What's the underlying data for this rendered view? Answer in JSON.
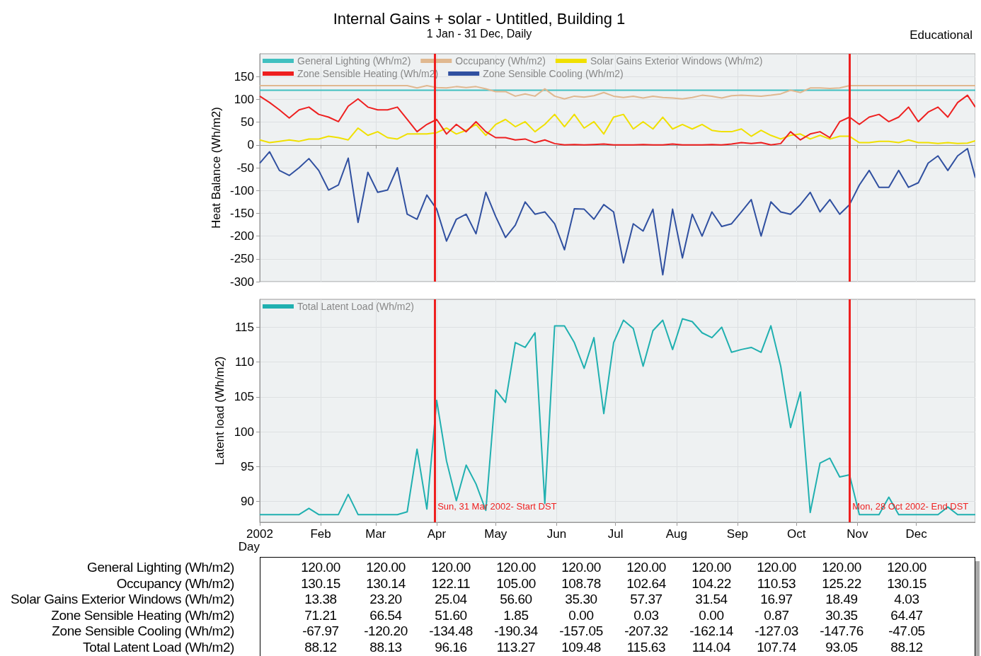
{
  "chart_data": [
    {
      "type": "line",
      "title": "Internal Gains + solar - Untitled, Building 1",
      "subtitle": "1 Jan - 31 Dec, Daily",
      "ylabel": "Heat Balance (Wh/m2)",
      "annotations": [
        "Educational"
      ],
      "x": [
        "2002-01-01",
        "2002-01-06",
        "2002-01-11",
        "2002-01-16",
        "2002-01-21",
        "2002-01-26",
        "2002-01-31",
        "2002-02-05",
        "2002-02-10",
        "2002-02-15",
        "2002-02-20",
        "2002-02-25",
        "2002-03-02",
        "2002-03-07",
        "2002-03-12",
        "2002-03-17",
        "2002-03-22",
        "2002-03-27",
        "2002-04-01",
        "2002-04-06",
        "2002-04-11",
        "2002-04-16",
        "2002-04-21",
        "2002-04-26",
        "2002-05-01",
        "2002-05-06",
        "2002-05-11",
        "2002-05-16",
        "2002-05-21",
        "2002-05-26",
        "2002-05-31",
        "2002-06-05",
        "2002-06-10",
        "2002-06-15",
        "2002-06-20",
        "2002-06-25",
        "2002-06-30",
        "2002-07-05",
        "2002-07-10",
        "2002-07-15",
        "2002-07-20",
        "2002-07-25",
        "2002-07-30",
        "2002-08-04",
        "2002-08-09",
        "2002-08-14",
        "2002-08-19",
        "2002-08-24",
        "2002-08-29",
        "2002-09-03",
        "2002-09-08",
        "2002-09-13",
        "2002-09-18",
        "2002-09-23",
        "2002-09-28",
        "2002-10-03",
        "2002-10-08",
        "2002-10-13",
        "2002-10-18",
        "2002-10-23",
        "2002-10-28",
        "2002-11-02",
        "2002-11-07",
        "2002-11-12",
        "2002-11-17",
        "2002-11-22",
        "2002-11-27",
        "2002-12-02",
        "2002-12-07",
        "2002-12-12",
        "2002-12-17",
        "2002-12-22",
        "2002-12-27",
        "2002-12-31"
      ],
      "series": [
        {
          "name": "General Lighting (Wh/m2)",
          "color": "#40c0c0",
          "x": [
            "2002-01-01",
            "2002-12-31"
          ],
          "values": [
            120,
            120
          ]
        },
        {
          "name": "Occupancy (Wh/m2)",
          "color": "#e0b890",
          "values": [
            130,
            130,
            130,
            130,
            130,
            130,
            130,
            130,
            130,
            130,
            130,
            130,
            130,
            130,
            130,
            130,
            125,
            130,
            126,
            125,
            128,
            126,
            128,
            123,
            117,
            117,
            107,
            112,
            107,
            123,
            107,
            101,
            107,
            105,
            108,
            115,
            107,
            104,
            107,
            103,
            107,
            104,
            103,
            101,
            104,
            109,
            107,
            103,
            108,
            109,
            108,
            107,
            109,
            112,
            120,
            115,
            125,
            125,
            124,
            125,
            130,
            130,
            130,
            130,
            130,
            130,
            130,
            130,
            130,
            130,
            130,
            130,
            130,
            130
          ]
        },
        {
          "name": "Solar Gains Exterior Windows (Wh/m2)",
          "color": "#f0e000",
          "values": [
            11,
            5,
            8,
            11,
            8,
            13,
            13,
            19,
            16,
            11,
            37,
            21,
            29,
            16,
            13,
            24,
            24,
            24,
            27,
            37,
            24,
            32,
            45,
            21,
            45,
            56,
            40,
            51,
            29,
            45,
            67,
            40,
            67,
            37,
            51,
            24,
            61,
            67,
            35,
            51,
            35,
            61,
            35,
            45,
            35,
            45,
            32,
            29,
            29,
            35,
            19,
            32,
            21,
            13,
            21,
            24,
            13,
            21,
            13,
            19,
            19,
            5,
            5,
            8,
            8,
            5,
            11,
            5,
            5,
            3,
            5,
            3,
            4,
            9
          ]
        },
        {
          "name": "Zone Sensible Heating (Wh/m2)",
          "color": "#ee2020",
          "values": [
            107,
            93,
            77,
            59,
            77,
            83,
            67,
            61,
            51,
            85,
            101,
            83,
            77,
            77,
            83,
            56,
            29,
            45,
            56,
            24,
            45,
            29,
            51,
            29,
            16,
            16,
            11,
            13,
            5,
            11,
            3,
            0,
            1,
            0,
            1,
            2,
            0,
            0,
            0,
            1,
            0,
            0,
            2,
            0,
            0,
            0,
            1,
            0,
            2,
            5,
            3,
            5,
            0,
            3,
            29,
            11,
            24,
            29,
            16,
            51,
            61,
            45,
            61,
            67,
            51,
            61,
            83,
            51,
            72,
            83,
            61,
            93,
            109,
            83
          ]
        },
        {
          "name": "Zone Sensible Cooling (Wh/m2)",
          "color": "#3050a0",
          "values": [
            -40,
            -15,
            -56,
            -67,
            -50,
            -30,
            -56,
            -99,
            -88,
            -29,
            -170,
            -60,
            -104,
            -99,
            -50,
            -152,
            -163,
            -110,
            -141,
            -211,
            -163,
            -152,
            -195,
            -104,
            -157,
            -203,
            -176,
            -125,
            -152,
            -147,
            -173,
            -230,
            -140,
            -141,
            -163,
            -131,
            -147,
            -259,
            -173,
            -189,
            -141,
            -285,
            -141,
            -248,
            -152,
            -200,
            -147,
            -179,
            -173,
            -147,
            -120,
            -200,
            -125,
            -147,
            -152,
            -131,
            -104,
            -147,
            -120,
            -152,
            -131,
            -88,
            -56,
            -93,
            -93,
            -56,
            -93,
            -83,
            -40,
            -24,
            -56,
            -24,
            -8,
            -72
          ]
        }
      ],
      "xlim": [
        "2002-01-01",
        "2002-12-31"
      ],
      "xticks": [
        {
          "value": "2002-01-01",
          "label": null
        },
        {
          "value": "2002-02-01",
          "label": null
        },
        {
          "value": "2002-03-01",
          "label": null
        },
        {
          "value": "2002-04-01",
          "label": null
        },
        {
          "value": "2002-05-01",
          "label": null
        },
        {
          "value": "2002-06-01",
          "label": null
        },
        {
          "value": "2002-07-01",
          "label": null
        },
        {
          "value": "2002-08-01",
          "label": null
        },
        {
          "value": "2002-09-01",
          "label": null
        },
        {
          "value": "2002-10-01",
          "label": null
        },
        {
          "value": "2002-11-01",
          "label": null
        },
        {
          "value": "2002-12-01",
          "label": null
        }
      ],
      "ylim": [
        -300,
        200
      ],
      "yticks": [
        -300,
        -250,
        -200,
        -150,
        -100,
        -50,
        0,
        50,
        100,
        150
      ],
      "tick_labels": "y",
      "grid": true,
      "legend": "top left",
      "marker": "none",
      "line_style": "solid",
      "ref_lines": [
        {
          "axis": "x",
          "value": "2002-03-31",
          "color": "#ee2020"
        },
        {
          "axis": "x",
          "value": "2002-10-28",
          "color": "#ee2020"
        }
      ]
    },
    {
      "type": "line",
      "xlabel": "Day",
      "ylabel": "Latent load (Wh/m2)",
      "x": [
        "2002-01-01",
        "2002-01-06",
        "2002-01-11",
        "2002-01-16",
        "2002-01-21",
        "2002-01-26",
        "2002-01-31",
        "2002-02-05",
        "2002-02-10",
        "2002-02-15",
        "2002-02-20",
        "2002-02-25",
        "2002-03-02",
        "2002-03-07",
        "2002-03-12",
        "2002-03-17",
        "2002-03-22",
        "2002-03-27",
        "2002-04-01",
        "2002-04-06",
        "2002-04-11",
        "2002-04-16",
        "2002-04-21",
        "2002-04-26",
        "2002-05-01",
        "2002-05-06",
        "2002-05-11",
        "2002-05-16",
        "2002-05-21",
        "2002-05-26",
        "2002-05-31",
        "2002-06-05",
        "2002-06-10",
        "2002-06-15",
        "2002-06-20",
        "2002-06-25",
        "2002-06-30",
        "2002-07-05",
        "2002-07-10",
        "2002-07-15",
        "2002-07-20",
        "2002-07-25",
        "2002-07-30",
        "2002-08-04",
        "2002-08-09",
        "2002-08-14",
        "2002-08-19",
        "2002-08-24",
        "2002-08-29",
        "2002-09-03",
        "2002-09-08",
        "2002-09-13",
        "2002-09-18",
        "2002-09-23",
        "2002-09-28",
        "2002-10-03",
        "2002-10-08",
        "2002-10-13",
        "2002-10-18",
        "2002-10-23",
        "2002-10-28",
        "2002-11-02",
        "2002-11-07",
        "2002-11-12",
        "2002-11-17",
        "2002-11-22",
        "2002-11-27",
        "2002-12-02",
        "2002-12-07",
        "2002-12-12",
        "2002-12-17",
        "2002-12-22",
        "2002-12-27",
        "2002-12-31"
      ],
      "series": [
        {
          "name": "Total Latent Load (Wh/m2)",
          "color": "#20b0b0",
          "values": [
            88.1,
            88.1,
            88.1,
            88.1,
            88.1,
            89,
            88.1,
            88.1,
            88.1,
            91,
            88.1,
            88.1,
            88.1,
            88.1,
            88.1,
            88.5,
            97.5,
            88.9,
            104.5,
            95.8,
            90.1,
            95.2,
            92.5,
            88.7,
            106,
            104.2,
            112.8,
            112.1,
            114.2,
            89.7,
            115.2,
            115.2,
            112.8,
            109.1,
            113.5,
            102.6,
            112.8,
            116,
            114.8,
            109.4,
            114.5,
            116,
            111.8,
            116.2,
            115.8,
            114.2,
            113.5,
            115,
            111.4,
            111.8,
            112.1,
            111.4,
            115.2,
            109.4,
            100.6,
            105.7,
            88.4,
            95.5,
            96.2,
            93.5,
            93.8,
            88.1,
            88.1,
            88.1,
            90.6,
            88.1,
            88.1,
            88.1,
            88.1,
            88.1,
            89.2,
            88.1,
            88.1,
            88.1
          ]
        }
      ],
      "xlim": [
        "2002-01-01",
        "2002-12-31"
      ],
      "xticks": [
        {
          "value": "2002-01-01",
          "label": "2002"
        },
        {
          "value": "2002-02-01",
          "label": "Feb"
        },
        {
          "value": "2002-03-01",
          "label": "Mar"
        },
        {
          "value": "2002-04-01",
          "label": "Apr"
        },
        {
          "value": "2002-05-01",
          "label": "May"
        },
        {
          "value": "2002-06-01",
          "label": "Jun"
        },
        {
          "value": "2002-07-01",
          "label": "Jul"
        },
        {
          "value": "2002-08-01",
          "label": "Aug"
        },
        {
          "value": "2002-09-01",
          "label": "Sep"
        },
        {
          "value": "2002-10-01",
          "label": "Oct"
        },
        {
          "value": "2002-11-01",
          "label": "Nov"
        },
        {
          "value": "2002-12-01",
          "label": "Dec"
        }
      ],
      "ylim": [
        87,
        119
      ],
      "yticks": [
        90,
        95,
        100,
        105,
        110,
        115
      ],
      "grid": true,
      "legend": "top left",
      "marker": "none",
      "line_style": "solid",
      "ref_lines": [
        {
          "axis": "x",
          "value": "2002-03-31",
          "label": "Sun, 31 Mar 2002- Start DST",
          "color": "#ee2020"
        },
        {
          "axis": "x",
          "value": "2002-10-28",
          "label": "Mon, 28 Oct 2002- End DST",
          "color": "#ee2020"
        }
      ]
    },
    {
      "type": "other",
      "y_categories": [
        "General Lighting (Wh/m2)",
        "Occupancy (Wh/m2)",
        "Solar Gains Exterior Windows (Wh/m2)",
        "Zone Sensible Heating (Wh/m2)",
        "Zone Sensible Cooling (Wh/m2)",
        "Total Latent Load (Wh/m2)"
      ],
      "cell_labels": [
        [
          "120.00",
          "120.00",
          "120.00",
          "120.00",
          "120.00",
          "120.00",
          "120.00",
          "120.00",
          "120.00",
          "120.00"
        ],
        [
          "130.15",
          "130.14",
          "122.11",
          "105.00",
          "108.78",
          "102.64",
          "104.22",
          "110.53",
          "125.22",
          "130.15"
        ],
        [
          "13.38",
          "23.20",
          "25.04",
          "56.60",
          "35.30",
          "57.37",
          "31.54",
          "16.97",
          "18.49",
          "4.03"
        ],
        [
          "71.21",
          "66.54",
          "51.60",
          "1.85",
          "0.00",
          "0.03",
          "0.00",
          "0.87",
          "30.35",
          "64.47"
        ],
        [
          "-67.97",
          "-120.20",
          "-134.48",
          "-190.34",
          "-157.05",
          "-207.32",
          "-162.14",
          "-127.03",
          "-147.76",
          "-47.05"
        ],
        [
          "88.12",
          "88.13",
          "96.16",
          "113.27",
          "109.48",
          "115.63",
          "114.04",
          "107.74",
          "93.05",
          "88.12"
        ]
      ]
    }
  ]
}
